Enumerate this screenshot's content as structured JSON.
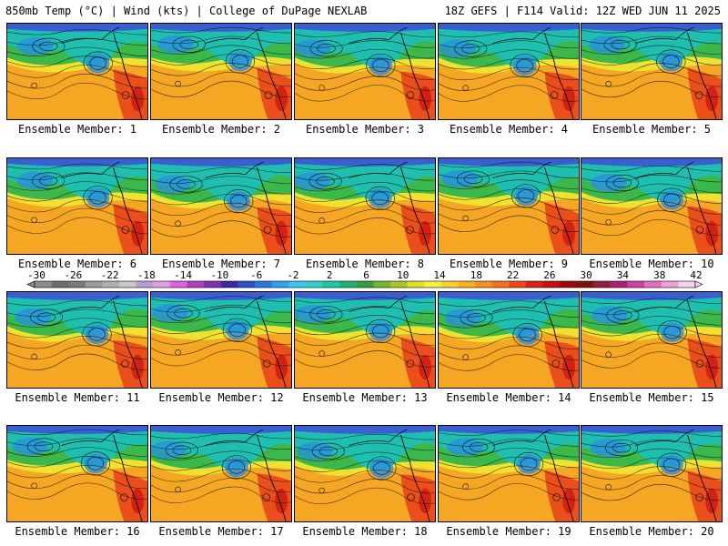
{
  "header": {
    "left": "850mb Temp (°C) | Wind (kts) | College of DuPage NEXLAB",
    "right": "18Z GEFS | F114 Valid: 12Z WED JUN 11 2025"
  },
  "caption_prefix": "Ensemble Member: ",
  "members": [
    1,
    2,
    3,
    4,
    5,
    6,
    7,
    8,
    9,
    10,
    11,
    12,
    13,
    14,
    15,
    16,
    17,
    18,
    19,
    20
  ],
  "colorbar": {
    "labels": [
      "-30",
      "-26",
      "-22",
      "-18",
      "-14",
      "-10",
      "-6",
      "-2",
      "2",
      "6",
      "10",
      "14",
      "18",
      "22",
      "26",
      "30",
      "34",
      "38",
      "42"
    ],
    "colors": [
      "#8c8c8c",
      "#6e6e6e",
      "#7a7a7a",
      "#9a9a9a",
      "#b0b0b0",
      "#c8c8c8",
      "#b79fd6",
      "#e0a0e0",
      "#e060e0",
      "#b040c0",
      "#8030b0",
      "#4028a0",
      "#3050c8",
      "#2878e0",
      "#30a0f0",
      "#38c8f0",
      "#30d0c8",
      "#20c8a0",
      "#20b070",
      "#30a040",
      "#70b830",
      "#a8c828",
      "#e0e020",
      "#f8f040",
      "#f8d030",
      "#f8b020",
      "#f89020",
      "#f87020",
      "#f04818",
      "#e02010",
      "#c81010",
      "#a00808",
      "#801010",
      "#902040",
      "#b02070",
      "#d040a0",
      "#e070c0",
      "#f0a0d8",
      "#f8d0f0"
    ]
  },
  "map_colors": {
    "hot": "#e8401a",
    "warm": "#f5a623",
    "yellow": "#f0e030",
    "green": "#3cb84a",
    "teal": "#1fbfb0",
    "blue": "#2a8ee0",
    "cold": "#3a5fd0"
  }
}
